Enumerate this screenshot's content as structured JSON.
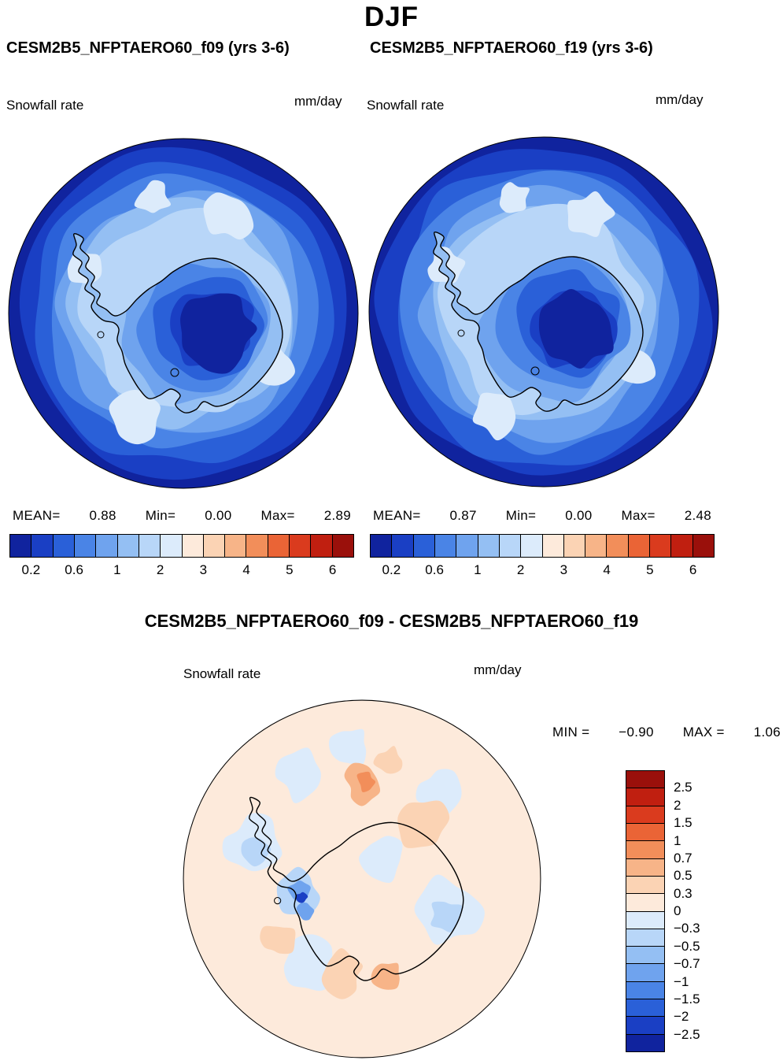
{
  "title": "DJF",
  "panels": {
    "left": {
      "subtitle": "CESM2B5_NFPTAERO60_f09 (yrs 3-6)",
      "field_label": "Snowfall rate",
      "units": "mm/day",
      "stats": {
        "mean_label": "MEAN=",
        "mean": "0.88",
        "min_label": "Min=",
        "min": "0.00",
        "max_label": "Max=",
        "max": "2.89"
      }
    },
    "right": {
      "subtitle": "CESM2B5_NFPTAERO60_f19 (yrs 3-6)",
      "field_label": "Snowfall rate",
      "units": "mm/day",
      "stats": {
        "mean_label": "MEAN=",
        "mean": "0.87",
        "min_label": "Min=",
        "min": "0.00",
        "max_label": "Max=",
        "max": "2.48"
      }
    },
    "diff": {
      "subtitle": "CESM2B5_NFPTAERO60_f09 - CESM2B5_NFPTAERO60_f19",
      "field_label": "Snowfall rate",
      "units": "mm/day",
      "stats": {
        "min_label": "MIN =",
        "min": "−0.90",
        "max_label": "MAX =",
        "max": "1.06"
      }
    }
  },
  "colorbar": {
    "colors": [
      "#10239e",
      "#1a3fc4",
      "#2a60d8",
      "#4a84e6",
      "#6fa3ee",
      "#94bff3",
      "#b8d6f8",
      "#dcebfb",
      "#fdeadb",
      "#fbd3b4",
      "#f7b488",
      "#f28e5a",
      "#ea6436",
      "#da3b1e",
      "#c01f10",
      "#9a100b"
    ],
    "top_ticks": [
      "0.2",
      "0.6",
      "1",
      "2",
      "3",
      "4",
      "5",
      "6"
    ],
    "diff_ticks": [
      "2.5",
      "2",
      "1.5",
      "1",
      "0.7",
      "0.5",
      "0.3",
      "0",
      "−0.3",
      "−0.5",
      "−0.7",
      "−1",
      "−1.5",
      "−2",
      "−2.5"
    ]
  },
  "chart_data": [
    {
      "type": "heatmap",
      "subtype": "south-polar-stereographic-map",
      "season": "DJF",
      "title": "CESM2B5_NFPTAERO60_f09 (yrs 3-6)",
      "variable": "Snowfall rate",
      "units": "mm/day",
      "stats": {
        "mean": 0.88,
        "min": 0.0,
        "max": 2.89
      },
      "contour_levels": [
        0.2,
        0.4,
        0.6,
        0.8,
        1,
        1.5,
        2,
        2.5,
        3,
        3.5,
        4,
        4.5,
        5,
        5.5,
        6
      ],
      "labeled_levels": [
        0.2,
        0.6,
        1,
        2,
        3,
        4,
        5,
        6
      ],
      "palette": "blue-to-red 16 segments",
      "legend_position": "below"
    },
    {
      "type": "heatmap",
      "subtype": "south-polar-stereographic-map",
      "season": "DJF",
      "title": "CESM2B5_NFPTAERO60_f19 (yrs 3-6)",
      "variable": "Snowfall rate",
      "units": "mm/day",
      "stats": {
        "mean": 0.87,
        "min": 0.0,
        "max": 2.48
      },
      "contour_levels": [
        0.2,
        0.4,
        0.6,
        0.8,
        1,
        1.5,
        2,
        2.5,
        3,
        3.5,
        4,
        4.5,
        5,
        5.5,
        6
      ],
      "labeled_levels": [
        0.2,
        0.6,
        1,
        2,
        3,
        4,
        5,
        6
      ],
      "palette": "blue-to-red 16 segments",
      "legend_position": "below"
    },
    {
      "type": "heatmap",
      "subtype": "south-polar-stereographic-difference-map",
      "season": "DJF",
      "title": "CESM2B5_NFPTAERO60_f09 - CESM2B5_NFPTAERO60_f19",
      "variable": "Snowfall rate",
      "units": "mm/day",
      "stats": {
        "min": -0.9,
        "max": 1.06
      },
      "contour_levels": [
        -2.5,
        -2,
        -1.5,
        -1,
        -0.7,
        -0.5,
        -0.3,
        0,
        0.3,
        0.5,
        0.7,
        1,
        1.5,
        2,
        2.5
      ],
      "palette": "blue-to-red 16 segments",
      "legend_position": "right-vertical"
    }
  ]
}
